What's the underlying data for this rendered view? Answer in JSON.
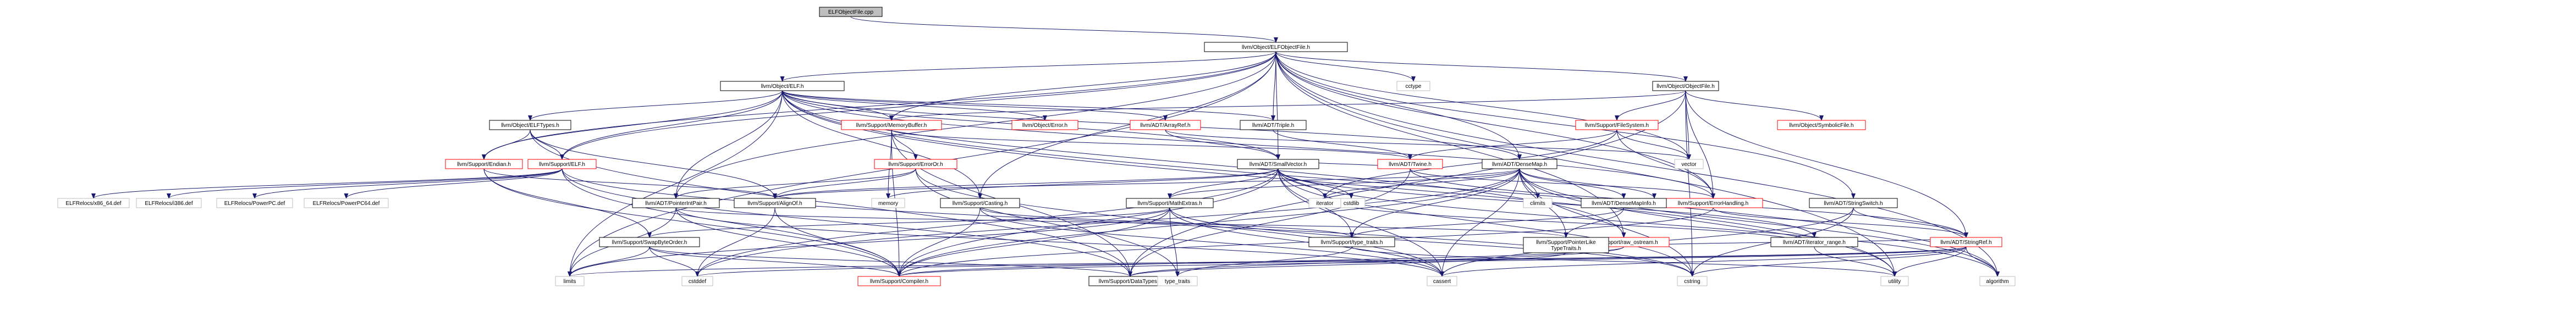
{
  "title": "ELFObjectFile.cpp",
  "colors": {
    "root_fill": "#bfbfbf",
    "edge": "#191970",
    "truncated_border": "#ff0000",
    "system_border": "#bfbfbf"
  },
  "nodes": [
    {
      "id": "root",
      "label": "ELFObjectFile.cpp",
      "kind": "root"
    },
    {
      "id": "elfobjectfile_h",
      "label": "llvm/Object/ELFObjectFile.h",
      "kind": "doc"
    },
    {
      "id": "elf_h",
      "label": "llvm/Object/ELF.h",
      "kind": "doc"
    },
    {
      "id": "cctype",
      "label": "cctype",
      "kind": "sys"
    },
    {
      "id": "objectfile_h",
      "label": "llvm/Object/ObjectFile.h",
      "kind": "doc"
    },
    {
      "id": "elftypes_h",
      "label": "llvm/Object/ELFTypes.h",
      "kind": "doc"
    },
    {
      "id": "memorybuffer_h",
      "label": "llvm/Support/MemoryBuffer.h",
      "kind": "trunc"
    },
    {
      "id": "object_error_h",
      "label": "llvm/Object/Error.h",
      "kind": "trunc"
    },
    {
      "id": "arrayref_h",
      "label": "llvm/ADT/ArrayRef.h",
      "kind": "trunc"
    },
    {
      "id": "triple_h",
      "label": "llvm/ADT/Triple.h",
      "kind": "doc"
    },
    {
      "id": "filesystem_h",
      "label": "llvm/Support/FileSystem.h",
      "kind": "trunc"
    },
    {
      "id": "symbolicfile_h",
      "label": "llvm/Object/SymbolicFile.h",
      "kind": "trunc"
    },
    {
      "id": "endian_h",
      "label": "llvm/Support/Endian.h",
      "kind": "trunc"
    },
    {
      "id": "support_elf_h",
      "label": "llvm/Support/ELF.h",
      "kind": "trunc"
    },
    {
      "id": "erroror_h",
      "label": "llvm/Support/ErrorOr.h",
      "kind": "trunc"
    },
    {
      "id": "smallvector_h",
      "label": "llvm/ADT/SmallVector.h",
      "kind": "doc"
    },
    {
      "id": "twine_h",
      "label": "llvm/ADT/Twine.h",
      "kind": "trunc"
    },
    {
      "id": "densemap_h",
      "label": "llvm/ADT/DenseMap.h",
      "kind": "doc"
    },
    {
      "id": "vector",
      "label": "vector",
      "kind": "sys"
    },
    {
      "id": "errorhandling_h",
      "label": "llvm/Support/ErrorHandling.h",
      "kind": "trunc"
    },
    {
      "id": "stringswitch_h",
      "label": "llvm/ADT/StringSwitch.h",
      "kind": "doc"
    },
    {
      "id": "x86_64_def",
      "label": "ELFRelocs/x86_64.def",
      "kind": "sys"
    },
    {
      "id": "i386_def",
      "label": "ELFRelocs/i386.def",
      "kind": "sys"
    },
    {
      "id": "ppc_def",
      "label": "ELFRelocs/PowerPC.def",
      "kind": "sys"
    },
    {
      "id": "ppc64_def",
      "label": "ELFRelocs/PowerPC64.def",
      "kind": "sys"
    },
    {
      "id": "pointerintpair_h",
      "label": "llvm/ADT/PointerIntPair.h",
      "kind": "doc"
    },
    {
      "id": "aligno_h",
      "label": "llvm/Support/AlignOf.h",
      "kind": "doc"
    },
    {
      "id": "casting_h",
      "label": "llvm/Support/Casting.h",
      "kind": "doc"
    },
    {
      "id": "mathextras_h",
      "label": "llvm/Support/MathExtras.h",
      "kind": "doc"
    },
    {
      "id": "memory",
      "label": "memory",
      "kind": "sys"
    },
    {
      "id": "cstdlib",
      "label": "cstdlib",
      "kind": "sys"
    },
    {
      "id": "climits",
      "label": "climits",
      "kind": "sys"
    },
    {
      "id": "iterator",
      "label": "iterator",
      "kind": "sys"
    },
    {
      "id": "new",
      "label": "new",
      "kind": "sys"
    },
    {
      "id": "densemapinfo_h",
      "label": "llvm/ADT/DenseMapInfo.h",
      "kind": "doc"
    },
    {
      "id": "raw_ostream_h",
      "label": "llvm/Support/raw_ostream.h",
      "kind": "trunc"
    },
    {
      "id": "stringref_h",
      "label": "llvm/ADT/StringRef.h",
      "kind": "trunc"
    },
    {
      "id": "swapbyteorder_h",
      "label": "llvm/Support/SwapByteOrder.h",
      "kind": "doc"
    },
    {
      "id": "type_traits_h",
      "label": "llvm/Support/type_traits.h",
      "kind": "doc"
    },
    {
      "id": "pointerlike_h",
      "label": "llvm/Support/PointerLike\nTypeTraits.h",
      "kind": "doc"
    },
    {
      "id": "iterator_range_h",
      "label": "llvm/ADT/iterator_range.h",
      "kind": "doc"
    },
    {
      "id": "limits",
      "label": "limits",
      "kind": "sys"
    },
    {
      "id": "cstddef",
      "label": "cstddef",
      "kind": "sys"
    },
    {
      "id": "compiler_h",
      "label": "llvm/Support/Compiler.h",
      "kind": "trunc"
    },
    {
      "id": "datatypes_h",
      "label": "llvm/Support/DataTypes.h",
      "kind": "doc"
    },
    {
      "id": "type_traits",
      "label": "type_traits",
      "kind": "sys"
    },
    {
      "id": "cassert",
      "label": "cassert",
      "kind": "sys"
    },
    {
      "id": "cstring",
      "label": "cstring",
      "kind": "sys"
    },
    {
      "id": "utility",
      "label": "utility",
      "kind": "sys"
    },
    {
      "id": "algorithm",
      "label": "algorithm",
      "kind": "sys"
    }
  ],
  "edges": [
    [
      "root",
      "elfobjectfile_h"
    ],
    [
      "elfobjectfile_h",
      "elf_h"
    ],
    [
      "elfobjectfile_h",
      "cctype"
    ],
    [
      "elfobjectfile_h",
      "objectfile_h"
    ],
    [
      "elfobjectfile_h",
      "memorybuffer_h"
    ],
    [
      "elfobjectfile_h",
      "endian_h"
    ],
    [
      "elfobjectfile_h",
      "support_elf_h"
    ],
    [
      "elfobjectfile_h",
      "triple_h"
    ],
    [
      "elfobjectfile_h",
      "smallvector_h"
    ],
    [
      "elfobjectfile_h",
      "densemap_h"
    ],
    [
      "elfobjectfile_h",
      "stringswitch_h"
    ],
    [
      "elfobjectfile_h",
      "errorhandling_h"
    ],
    [
      "elfobjectfile_h",
      "casting_h"
    ],
    [
      "elfobjectfile_h",
      "pointerintpair_h"
    ],
    [
      "elfobjectfile_h",
      "raw_ostream_h"
    ],
    [
      "elfobjectfile_h",
      "vector"
    ],
    [
      "elfobjectfile_h",
      "algorithm"
    ],
    [
      "elfobjectfile_h",
      "limits"
    ],
    [
      "elfobjectfile_h",
      "utility"
    ],
    [
      "elf_h",
      "elftypes_h"
    ],
    [
      "elf_h",
      "memorybuffer_h"
    ],
    [
      "elf_h",
      "object_error_h"
    ],
    [
      "elf_h",
      "arrayref_h"
    ],
    [
      "elf_h",
      "triple_h"
    ],
    [
      "elf_h",
      "densemap_h"
    ],
    [
      "elf_h",
      "smallvector_h"
    ],
    [
      "elf_h",
      "pointerintpair_h"
    ],
    [
      "elf_h",
      "support_elf_h"
    ],
    [
      "elf_h",
      "endian_h"
    ],
    [
      "elf_h",
      "errorhandling_h"
    ],
    [
      "elf_h",
      "raw_ostream_h"
    ],
    [
      "elf_h",
      "casting_h"
    ],
    [
      "elf_h",
      "limits"
    ],
    [
      "elf_h",
      "utility"
    ],
    [
      "elf_h",
      "algorithm"
    ],
    [
      "objectfile_h",
      "filesystem_h"
    ],
    [
      "objectfile_h",
      "symbolicfile_h"
    ],
    [
      "objectfile_h",
      "memorybuffer_h"
    ],
    [
      "objectfile_h",
      "stringref_h"
    ],
    [
      "objectfile_h",
      "datatypes_h"
    ],
    [
      "objectfile_h",
      "errorhandling_h"
    ],
    [
      "objectfile_h",
      "cstring"
    ],
    [
      "objectfile_h",
      "vector"
    ],
    [
      "elftypes_h",
      "endian_h"
    ],
    [
      "elftypes_h",
      "support_elf_h"
    ],
    [
      "elftypes_h",
      "aligno_h"
    ],
    [
      "elftypes_h",
      "datatypes_h"
    ],
    [
      "memorybuffer_h",
      "erroror_h"
    ],
    [
      "memorybuffer_h",
      "compiler_h"
    ],
    [
      "memorybuffer_h",
      "datatypes_h"
    ],
    [
      "memorybuffer_h",
      "memory"
    ],
    [
      "memorybuffer_h",
      "twine_h"
    ],
    [
      "arrayref_h",
      "smallvector_h"
    ],
    [
      "arrayref_h",
      "vector"
    ],
    [
      "triple_h",
      "twine_h"
    ],
    [
      "filesystem_h",
      "twine_h"
    ],
    [
      "filesystem_h",
      "errorhandling_h"
    ],
    [
      "filesystem_h",
      "vector"
    ],
    [
      "filesystem_h",
      "iterator"
    ],
    [
      "endian_h",
      "swapbyteorder_h"
    ],
    [
      "endian_h",
      "aligno_h"
    ],
    [
      "endian_h",
      "compiler_h"
    ],
    [
      "support_elf_h",
      "x86_64_def"
    ],
    [
      "support_elf_h",
      "i386_def"
    ],
    [
      "support_elf_h",
      "ppc_def"
    ],
    [
      "support_elf_h",
      "ppc64_def"
    ],
    [
      "support_elf_h",
      "compiler_h"
    ],
    [
      "support_elf_h",
      "datatypes_h"
    ],
    [
      "support_elf_h",
      "cstring"
    ],
    [
      "erroror_h",
      "pointerintpair_h"
    ],
    [
      "erroror_h",
      "aligno_h"
    ],
    [
      "erroror_h",
      "type_traits"
    ],
    [
      "erroror_h",
      "cassert"
    ],
    [
      "smallvector_h",
      "aligno_h"
    ],
    [
      "smallvector_h",
      "compiler_h"
    ],
    [
      "smallvector_h",
      "mathextras_h"
    ],
    [
      "smallvector_h",
      "type_traits_h"
    ],
    [
      "smallvector_h",
      "iterator_range_h"
    ],
    [
      "smallvector_h",
      "algorithm"
    ],
    [
      "smallvector_h",
      "cassert"
    ],
    [
      "smallvector_h",
      "cstddef"
    ],
    [
      "smallvector_h",
      "cstdlib"
    ],
    [
      "smallvector_h",
      "cstring"
    ],
    [
      "smallvector_h",
      "iterator"
    ],
    [
      "smallvector_h",
      "memory"
    ],
    [
      "twine_h",
      "smallvector_h"
    ],
    [
      "twine_h",
      "stringref_h"
    ],
    [
      "twine_h",
      "datatypes_h"
    ],
    [
      "twine_h",
      "errorhandling_h"
    ],
    [
      "densemap_h",
      "densemapinfo_h"
    ],
    [
      "densemap_h",
      "epochtracker_h"
    ],
    [
      "densemap_h",
      "aligno_h"
    ],
    [
      "densemap_h",
      "compiler_h"
    ],
    [
      "densemap_h",
      "mathextras_h"
    ],
    [
      "densemap_h",
      "pointerlike_h"
    ],
    [
      "densemap_h",
      "type_traits_h"
    ],
    [
      "densemap_h",
      "algorithm"
    ],
    [
      "densemap_h",
      "cassert"
    ],
    [
      "densemap_h",
      "climits"
    ],
    [
      "densemap_h",
      "cstddef"
    ],
    [
      "densemap_h",
      "cstring"
    ],
    [
      "densemap_h",
      "iterator"
    ],
    [
      "densemap_h",
      "new"
    ],
    [
      "densemap_h",
      "utility"
    ],
    [
      "errorhandling_h",
      "stringref_h"
    ],
    [
      "errorhandling_h",
      "compiler_h"
    ],
    [
      "stringswitch_h",
      "stringref_h"
    ],
    [
      "stringswitch_h",
      "cassert"
    ],
    [
      "stringswitch_h",
      "cstring"
    ],
    [
      "pointerintpair_h",
      "pointerlike_h"
    ],
    [
      "pointerintpair_h",
      "compiler_h"
    ],
    [
      "pointerintpair_h",
      "cassert"
    ],
    [
      "pointerintpair_h",
      "limits"
    ],
    [
      "aligno_h",
      "compiler_h"
    ],
    [
      "aligno_h",
      "cstddef"
    ],
    [
      "casting_h",
      "type_traits_h"
    ],
    [
      "casting_h",
      "compiler_h"
    ],
    [
      "casting_h",
      "cassert"
    ],
    [
      "mathextras_h",
      "swapbyteorder_h"
    ],
    [
      "mathextras_h",
      "compiler_h"
    ],
    [
      "mathextras_h",
      "cassert"
    ],
    [
      "mathextras_h",
      "cstring"
    ],
    [
      "mathextras_h",
      "type_traits"
    ],
    [
      "mathextras_h",
      "limits"
    ],
    [
      "densemapinfo_h",
      "pointerlike_h"
    ],
    [
      "densemapinfo_h",
      "type_traits_h"
    ],
    [
      "raw_ostream_h",
      "stringref_h"
    ],
    [
      "raw_ostream_h",
      "compiler_h"
    ],
    [
      "raw_ostream_h",
      "datatypes_h"
    ],
    [
      "stringref_h",
      "compiler_h"
    ],
    [
      "stringref_h",
      "algorithm"
    ],
    [
      "stringref_h",
      "cassert"
    ],
    [
      "stringref_h",
      "cstddef"
    ],
    [
      "stringref_h",
      "cstring"
    ],
    [
      "stringref_h",
      "limits"
    ],
    [
      "stringref_h",
      "string"
    ],
    [
      "stringref_h",
      "utility"
    ],
    [
      "swapbyteorder_h",
      "compiler_h"
    ],
    [
      "swapbyteorder_h",
      "datatypes_h"
    ],
    [
      "swapbyteorder_h",
      "cstddef"
    ],
    [
      "swapbyteorder_h",
      "limits"
    ],
    [
      "type_traits_h",
      "type_traits"
    ],
    [
      "type_traits_h",
      "utility"
    ],
    [
      "pointerlike_h",
      "datatypes_h"
    ],
    [
      "iterator_range_h",
      "iterator"
    ],
    [
      "iterator_range_h",
      "utility"
    ]
  ]
}
